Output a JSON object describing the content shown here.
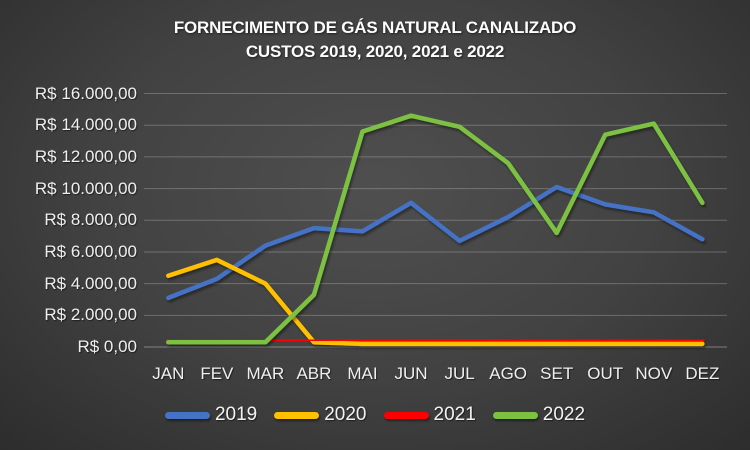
{
  "chart_data": {
    "type": "line",
    "title": "FORNECIMENTO DE GÁS NATURAL CANALIZADO",
    "subtitle": "CUSTOS 2019, 2020, 2021 e 2022",
    "categories": [
      "JAN",
      "FEV",
      "MAR",
      "ABR",
      "MAI",
      "JUN",
      "JUL",
      "AGO",
      "SET",
      "OUT",
      "NOV",
      "DEZ"
    ],
    "series": [
      {
        "name": "2019",
        "color": "#4472C4",
        "values": [
          3100,
          4300,
          6400,
          7500,
          7300,
          9100,
          6700,
          8200,
          10100,
          9000,
          8500,
          6800
        ]
      },
      {
        "name": "2020",
        "color": "#FFC000",
        "values": [
          4500,
          5500,
          4000,
          300,
          200,
          200,
          200,
          200,
          200,
          200,
          200,
          200
        ]
      },
      {
        "name": "2021",
        "color": "#FF0000",
        "values": [
          400,
          400,
          400,
          420,
          430,
          430,
          430,
          430,
          440,
          440,
          450,
          450
        ]
      },
      {
        "name": "2022",
        "color": "#7DC142",
        "values": [
          300,
          300,
          300,
          3300,
          13600,
          14600,
          13900,
          11600,
          7200,
          13400,
          14100,
          9100
        ]
      }
    ],
    "y_ticks": [
      "R$ 16.000,00",
      "R$ 14.000,00",
      "R$ 12.000,00",
      "R$ 10.000,00",
      "R$ 8.000,00",
      "R$ 6.000,00",
      "R$ 4.000,00",
      "R$ 2.000,00",
      "R$ 0,00"
    ],
    "ylim": [
      0,
      16000
    ],
    "y_tick_step": 2000,
    "grid": true,
    "gridline_color": "rgba(225,225,225,0.28)",
    "axisline_color": "rgba(225,225,225,0.42)",
    "legend_position": "bottom"
  }
}
